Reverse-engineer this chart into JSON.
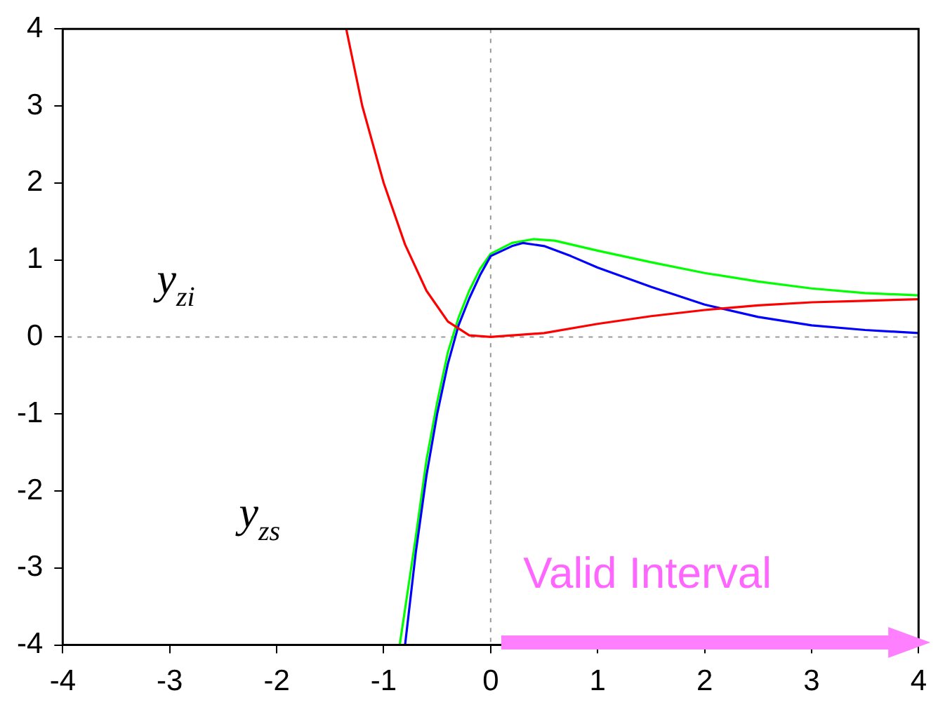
{
  "chart_data": {
    "type": "line",
    "xlim": [
      -4,
      4
    ],
    "xticks": [
      -4,
      -3,
      -2,
      -1,
      0,
      1,
      2,
      3,
      4
    ],
    "ylim": [
      -4,
      4
    ],
    "yticks": [
      -4,
      -3,
      -2,
      -1,
      0,
      1,
      2,
      3,
      4
    ],
    "grid": false,
    "legend": false,
    "marker": "none",
    "line_style": "solid",
    "series": [
      {
        "color": "#ff0000",
        "x": [
          -1.35,
          -1.2,
          -1.0,
          -0.8,
          -0.6,
          -0.4,
          -0.2,
          0,
          0.5,
          1,
          1.5,
          2,
          2.5,
          3,
          3.5,
          4
        ],
        "values": [
          4,
          3.0,
          2.0,
          1.2,
          0.6,
          0.2,
          0.02,
          0,
          0.05,
          0.17,
          0.27,
          0.35,
          0.41,
          0.45,
          0.47,
          0.49
        ]
      },
      {
        "color": "#0000ff",
        "x": [
          -0.8,
          -0.7,
          -0.6,
          -0.5,
          -0.4,
          -0.3,
          -0.2,
          -0.1,
          0,
          0.2,
          0.3,
          0.5,
          0.75,
          1,
          1.5,
          2,
          2.5,
          3,
          3.5,
          4
        ],
        "values": [
          -4,
          -2.8,
          -1.8,
          -1.0,
          -0.35,
          0.15,
          0.5,
          0.8,
          1.05,
          1.18,
          1.22,
          1.18,
          1.05,
          0.9,
          0.65,
          0.42,
          0.26,
          0.15,
          0.09,
          0.05
        ]
      },
      {
        "color": "#00ff00",
        "x": [
          -0.85,
          -0.7,
          -0.6,
          -0.5,
          -0.4,
          -0.3,
          -0.2,
          -0.1,
          0,
          0.2,
          0.4,
          0.6,
          1,
          1.5,
          2,
          2.5,
          3,
          3.5,
          4
        ],
        "values": [
          -4,
          -2.6,
          -1.6,
          -0.85,
          -0.2,
          0.25,
          0.6,
          0.88,
          1.08,
          1.22,
          1.27,
          1.25,
          1.12,
          0.97,
          0.83,
          0.72,
          0.63,
          0.57,
          0.54
        ]
      }
    ],
    "ref_lines": [
      {
        "axis": "x",
        "value": 0,
        "color": "#999999",
        "line_style": "dotted"
      },
      {
        "axis": "y",
        "value": 0,
        "color": "#999999",
        "line_style": "dotted"
      }
    ],
    "annotations": [
      "y$_{zi}$",
      "y$_{zs}$",
      "Valid Interval"
    ]
  }
}
